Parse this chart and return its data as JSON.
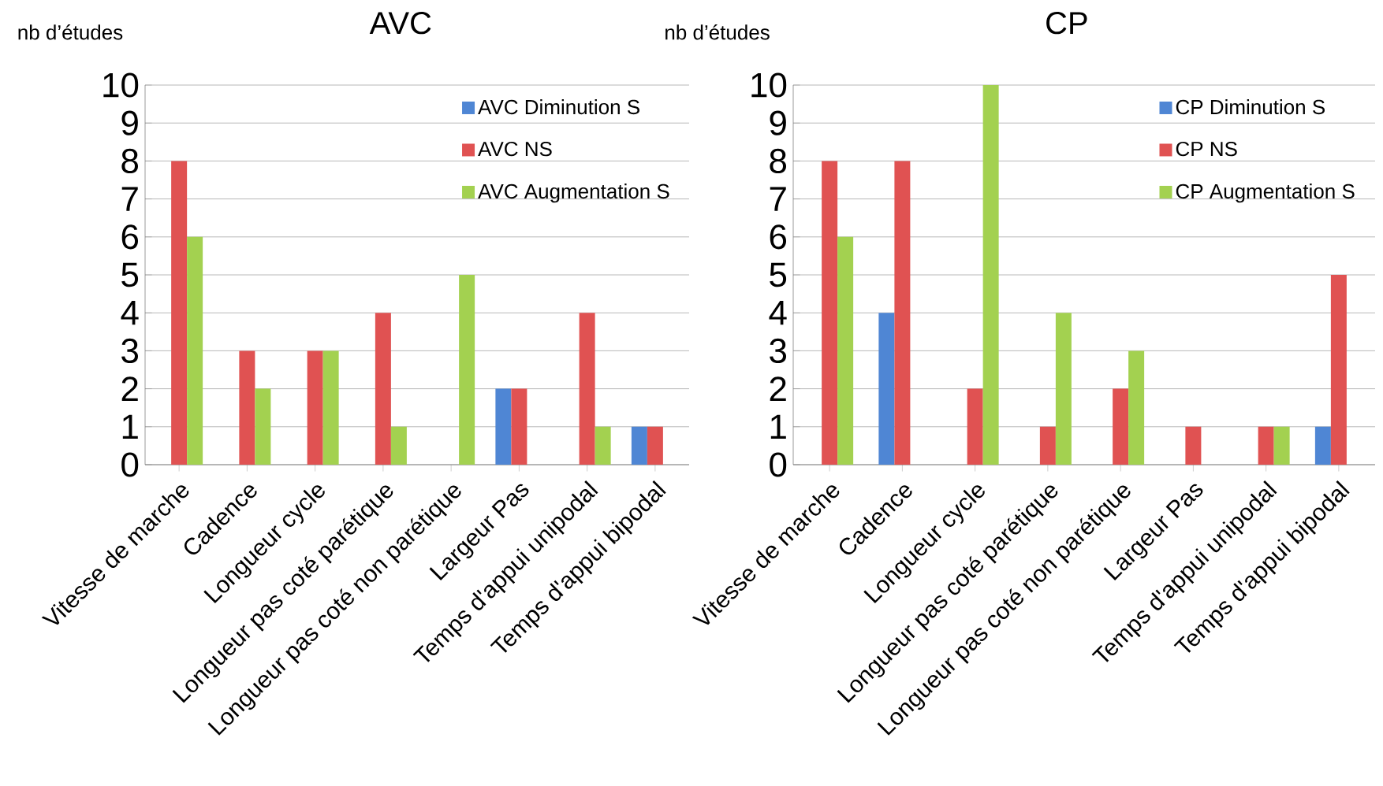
{
  "chart_data": [
    {
      "type": "bar",
      "title": "AVC",
      "ylabel": "nb d’études",
      "categories": [
        "Vitesse de marche",
        "Cadence",
        "Longueur cycle",
        "Longueur pas coté parétique",
        "Longueur pas coté non parétique",
        "Largeur Pas",
        "Temps d'appui unipodal",
        "Temps d'appui bipodal"
      ],
      "series": [
        {
          "name": "AVC Diminution S",
          "color": "#4f86d4",
          "values": [
            0,
            0,
            0,
            0,
            0,
            2,
            0,
            1
          ]
        },
        {
          "name": "AVC NS",
          "color": "#e05252",
          "values": [
            8,
            3,
            3,
            4,
            0,
            2,
            4,
            1
          ]
        },
        {
          "name": "AVC Augmentation S",
          "color": "#a3d150",
          "values": [
            6,
            2,
            3,
            1,
            5,
            0,
            1,
            0
          ]
        }
      ],
      "ylim": [
        0,
        10
      ],
      "yticks": [
        0,
        1,
        2,
        3,
        4,
        5,
        6,
        7,
        8,
        9,
        10
      ],
      "grid": "y",
      "legend": "top right"
    },
    {
      "type": "bar",
      "title": "CP",
      "ylabel": "nb d’études",
      "categories": [
        "Vitesse de marche",
        "Cadence",
        "Longueur cycle",
        "Longueur pas coté parétique",
        "Longueur pas coté non parétique",
        "Largeur Pas",
        "Temps d'appui unipodal",
        "Temps d'appui bipodal"
      ],
      "series": [
        {
          "name": "CP Diminution S",
          "color": "#4f86d4",
          "values": [
            0,
            4,
            0,
            0,
            0,
            0,
            0,
            1
          ]
        },
        {
          "name": "CP NS",
          "color": "#e05252",
          "values": [
            8,
            8,
            2,
            1,
            2,
            1,
            1,
            5
          ]
        },
        {
          "name": "CP Augmentation S",
          "color": "#a3d150",
          "values": [
            6,
            0,
            10,
            4,
            3,
            0,
            1,
            0
          ]
        }
      ],
      "ylim": [
        0,
        10
      ],
      "yticks": [
        0,
        1,
        2,
        3,
        4,
        5,
        6,
        7,
        8,
        9,
        10
      ],
      "grid": "y",
      "legend": "top right"
    }
  ]
}
